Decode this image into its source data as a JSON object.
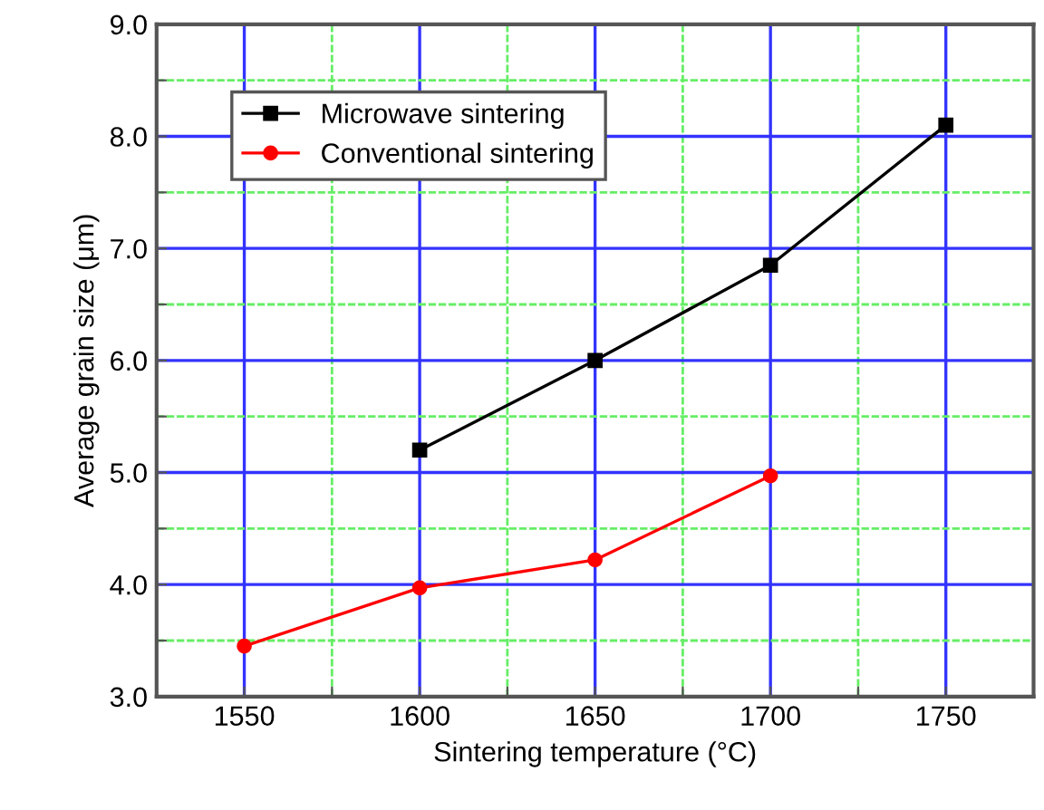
{
  "chart_data": {
    "type": "line",
    "xlabel": "Sintering temperature (°C)",
    "ylabel": "Average grain size (μm)",
    "xlim": [
      1525,
      1775
    ],
    "ylim": [
      3.0,
      9.0
    ],
    "xticks": [
      1550,
      {
        "value": 1575,
        "label": null
      },
      1600,
      {
        "value": 1625,
        "label": null
      },
      1650,
      {
        "value": 1675,
        "label": null
      },
      1700,
      {
        "value": 1725,
        "label": null
      },
      1750
    ],
    "yticks": [
      "3.0",
      {
        "value": 3.5,
        "label": null
      },
      {
        "value": 4.0,
        "label": "4.0"
      },
      {
        "value": 4.5,
        "label": null
      },
      {
        "value": 5.0,
        "label": "5.0"
      },
      {
        "value": 5.5,
        "label": null
      },
      {
        "value": 6.0,
        "label": "6.0"
      },
      {
        "value": 6.5,
        "label": null
      },
      {
        "value": 7.0,
        "label": "7.0"
      },
      {
        "value": 7.5,
        "label": null
      },
      {
        "value": 8.0,
        "label": "8.0"
      },
      {
        "value": 8.5,
        "label": null
      },
      {
        "value": 9.0,
        "label": "9.0"
      }
    ],
    "grid": true,
    "legend": "top left",
    "series": [
      {
        "name": "Microwave sintering",
        "color": "#000000",
        "marker": "square",
        "x": [
          1600,
          1650,
          1700,
          1750
        ],
        "values": [
          5.2,
          6.0,
          6.85,
          8.1
        ]
      },
      {
        "name": "Conventional sintering",
        "color": "#ff0000",
        "marker": "circle",
        "x": [
          1550,
          1600,
          1650,
          1700
        ],
        "values": [
          3.45,
          3.97,
          4.22,
          4.97
        ]
      }
    ]
  }
}
